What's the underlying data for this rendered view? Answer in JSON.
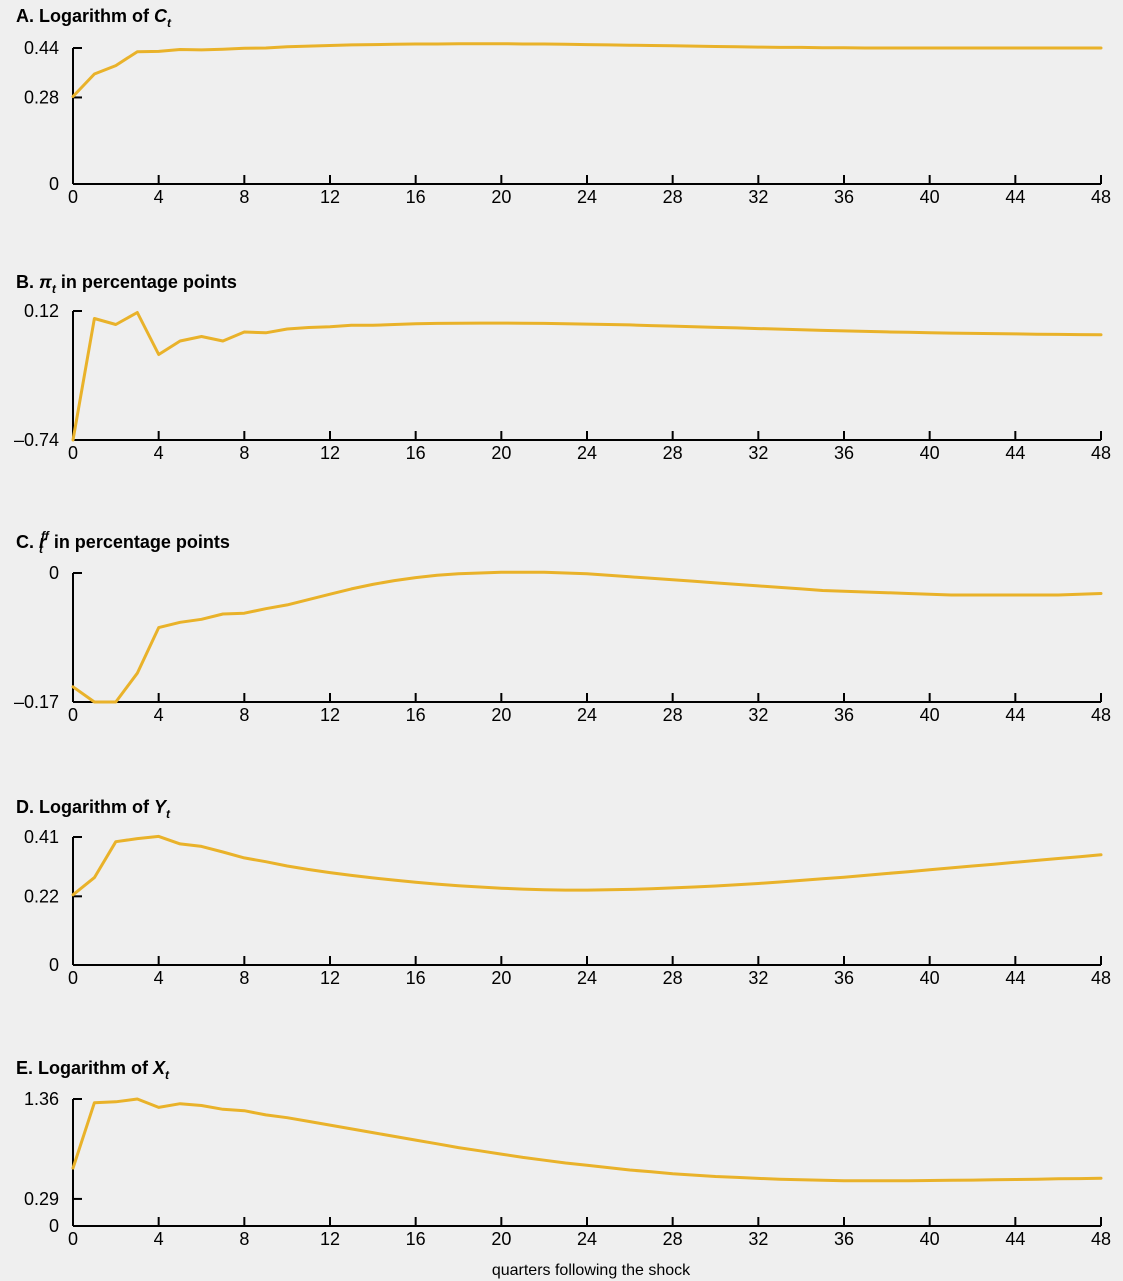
{
  "figure": {
    "xlabel": "quarters following the shock",
    "line_color": "#e9b22a",
    "background": "#efefef"
  },
  "chart_data": [
    {
      "type": "line",
      "panel": "A",
      "title_prefix": "A. Logarithm of ",
      "title_symbol": "C",
      "title_sub": "t",
      "title_suffix": "",
      "xlabel": "",
      "ylabel": "",
      "xlim": [
        0,
        48
      ],
      "ylim": [
        0,
        0.44
      ],
      "x_ticks": [
        0,
        4,
        8,
        12,
        16,
        20,
        24,
        28,
        32,
        36,
        40,
        44,
        48
      ],
      "x_tick_labels": [
        "0",
        "4",
        "8",
        "12",
        "16",
        "20",
        "24",
        "28",
        "32",
        "36",
        "40",
        "44",
        "48"
      ],
      "y_ticks": [
        0,
        0.28,
        0.44
      ],
      "y_tick_labels": [
        "0",
        "0.28",
        "0.44"
      ],
      "x": [
        0,
        1,
        2,
        3,
        4,
        5,
        6,
        7,
        8,
        9,
        10,
        11,
        12,
        13,
        14,
        15,
        16,
        17,
        18,
        19,
        20,
        21,
        22,
        23,
        24,
        25,
        26,
        27,
        28,
        29,
        30,
        31,
        32,
        33,
        34,
        35,
        36,
        37,
        38,
        39,
        40,
        41,
        42,
        43,
        44,
        45,
        46,
        47,
        48
      ],
      "y": [
        0.283,
        0.356,
        0.383,
        0.428,
        0.429,
        0.435,
        0.434,
        0.436,
        0.439,
        0.44,
        0.444,
        0.446,
        0.448,
        0.45,
        0.451,
        0.452,
        0.453,
        0.453,
        0.454,
        0.454,
        0.454,
        0.453,
        0.453,
        0.452,
        0.451,
        0.45,
        0.449,
        0.448,
        0.447,
        0.446,
        0.445,
        0.444,
        0.443,
        0.442,
        0.442,
        0.441,
        0.441,
        0.44,
        0.44,
        0.44,
        0.44,
        0.44,
        0.44,
        0.44,
        0.44,
        0.44,
        0.44,
        0.44,
        0.44
      ]
    },
    {
      "type": "line",
      "panel": "B",
      "title_prefix": "B. ",
      "title_symbol": "π",
      "title_sub": "t",
      "title_suffix": " in percentage points",
      "xlabel": "",
      "ylabel": "",
      "xlim": [
        0,
        48
      ],
      "ylim": [
        -0.74,
        0.12
      ],
      "x_ticks": [
        0,
        4,
        8,
        12,
        16,
        20,
        24,
        28,
        32,
        36,
        40,
        44,
        48
      ],
      "x_tick_labels": [
        "0",
        "4",
        "8",
        "12",
        "16",
        "20",
        "24",
        "28",
        "32",
        "36",
        "40",
        "44",
        "48"
      ],
      "y_ticks": [
        -0.74,
        0.12
      ],
      "y_tick_labels": [
        "–0.74",
        "0.12"
      ],
      "x": [
        0,
        1,
        2,
        3,
        4,
        5,
        6,
        7,
        8,
        9,
        10,
        11,
        12,
        13,
        14,
        15,
        16,
        17,
        18,
        19,
        20,
        21,
        22,
        23,
        24,
        25,
        26,
        27,
        28,
        29,
        30,
        31,
        32,
        33,
        34,
        35,
        36,
        37,
        38,
        39,
        40,
        41,
        42,
        43,
        44,
        45,
        46,
        47,
        48
      ],
      "y": [
        -0.74,
        0.07,
        0.03,
        0.11,
        -0.17,
        -0.08,
        -0.05,
        -0.08,
        -0.02,
        -0.025,
        0.0,
        0.01,
        0.015,
        0.025,
        0.025,
        0.03,
        0.035,
        0.037,
        0.038,
        0.039,
        0.039,
        0.038,
        0.037,
        0.035,
        0.033,
        0.03,
        0.027,
        0.023,
        0.019,
        0.015,
        0.011,
        0.007,
        0.003,
        -0.001,
        -0.005,
        -0.009,
        -0.013,
        -0.016,
        -0.019,
        -0.022,
        -0.025,
        -0.027,
        -0.029,
        -0.031,
        -0.033,
        -0.035,
        -0.036,
        -0.037,
        -0.038
      ]
    },
    {
      "type": "line",
      "panel": "C",
      "title_prefix": "C. ",
      "title_symbol": "r",
      "title_sub": "t",
      "title_sup": "ff",
      "title_suffix": " in percentage points",
      "xlabel": "",
      "ylabel": "",
      "xlim": [
        0,
        48
      ],
      "ylim": [
        -0.17,
        0
      ],
      "x_ticks": [
        0,
        4,
        8,
        12,
        16,
        20,
        24,
        28,
        32,
        36,
        40,
        44,
        48
      ],
      "x_tick_labels": [
        "0",
        "4",
        "8",
        "12",
        "16",
        "20",
        "24",
        "28",
        "32",
        "36",
        "40",
        "44",
        "48"
      ],
      "y_ticks": [
        -0.17,
        0
      ],
      "y_tick_labels": [
        "–0.17",
        "0"
      ],
      "x": [
        0,
        1,
        2,
        3,
        4,
        5,
        6,
        7,
        8,
        9,
        10,
        11,
        12,
        13,
        14,
        15,
        16,
        17,
        18,
        19,
        20,
        21,
        22,
        23,
        24,
        25,
        26,
        27,
        28,
        29,
        30,
        31,
        32,
        33,
        34,
        35,
        36,
        37,
        38,
        39,
        40,
        41,
        42,
        43,
        44,
        45,
        46,
        47,
        48
      ],
      "y": [
        -0.15,
        -0.17,
        -0.17,
        -0.132,
        -0.072,
        -0.065,
        -0.061,
        -0.054,
        -0.053,
        -0.047,
        -0.042,
        -0.035,
        -0.028,
        -0.021,
        -0.015,
        -0.01,
        -0.006,
        -0.003,
        -0.001,
        0.0,
        0.001,
        0.001,
        0.001,
        0.0,
        -0.001,
        -0.003,
        -0.005,
        -0.007,
        -0.009,
        -0.011,
        -0.013,
        -0.015,
        -0.017,
        -0.019,
        -0.021,
        -0.023,
        -0.024,
        -0.025,
        -0.026,
        -0.027,
        -0.028,
        -0.029,
        -0.029,
        -0.029,
        -0.029,
        -0.029,
        -0.029,
        -0.028,
        -0.027
      ]
    },
    {
      "type": "line",
      "panel": "D",
      "title_prefix": "D. Logarithm of ",
      "title_symbol": "Y",
      "title_sub": "t",
      "title_suffix": "",
      "xlabel": "",
      "ylabel": "",
      "xlim": [
        0,
        48
      ],
      "ylim": [
        0,
        0.41
      ],
      "x_ticks": [
        0,
        4,
        8,
        12,
        16,
        20,
        24,
        28,
        32,
        36,
        40,
        44,
        48
      ],
      "x_tick_labels": [
        "0",
        "4",
        "8",
        "12",
        "16",
        "20",
        "24",
        "28",
        "32",
        "36",
        "40",
        "44",
        "48"
      ],
      "y_ticks": [
        0,
        0.22,
        0.41
      ],
      "y_tick_labels": [
        "0",
        "0.22",
        "0.41"
      ],
      "x": [
        0,
        1,
        2,
        3,
        4,
        5,
        6,
        7,
        8,
        9,
        10,
        11,
        12,
        13,
        14,
        15,
        16,
        17,
        18,
        19,
        20,
        21,
        22,
        23,
        24,
        25,
        26,
        27,
        28,
        29,
        30,
        31,
        32,
        33,
        34,
        35,
        36,
        37,
        38,
        39,
        40,
        41,
        42,
        43,
        44,
        45,
        46,
        47,
        48
      ],
      "y": [
        0.225,
        0.28,
        0.395,
        0.405,
        0.412,
        0.388,
        0.38,
        0.362,
        0.343,
        0.331,
        0.317,
        0.306,
        0.296,
        0.287,
        0.279,
        0.272,
        0.265,
        0.259,
        0.254,
        0.25,
        0.246,
        0.243,
        0.241,
        0.24,
        0.24,
        0.241,
        0.242,
        0.244,
        0.247,
        0.25,
        0.253,
        0.257,
        0.261,
        0.266,
        0.271,
        0.276,
        0.281,
        0.287,
        0.293,
        0.299,
        0.305,
        0.311,
        0.317,
        0.323,
        0.329,
        0.335,
        0.341,
        0.347,
        0.353
      ]
    },
    {
      "type": "line",
      "panel": "E",
      "title_prefix": "E. Logarithm of ",
      "title_symbol": "X",
      "title_sub": "t",
      "title_suffix": "",
      "xlabel": "quarters following the shock",
      "ylabel": "",
      "xlim": [
        0,
        48
      ],
      "ylim": [
        0,
        1.36
      ],
      "x_ticks": [
        0,
        4,
        8,
        12,
        16,
        20,
        24,
        28,
        32,
        36,
        40,
        44,
        48
      ],
      "x_tick_labels": [
        "0",
        "4",
        "8",
        "12",
        "16",
        "20",
        "24",
        "28",
        "32",
        "36",
        "40",
        "44",
        "48"
      ],
      "y_ticks": [
        0,
        0.29,
        1.36
      ],
      "y_tick_labels": [
        "0",
        "0.29",
        "1.36"
      ],
      "x": [
        0,
        1,
        2,
        3,
        4,
        5,
        6,
        7,
        8,
        9,
        10,
        11,
        12,
        13,
        14,
        15,
        16,
        17,
        18,
        19,
        20,
        21,
        22,
        23,
        24,
        25,
        26,
        27,
        28,
        29,
        30,
        31,
        32,
        33,
        34,
        35,
        36,
        37,
        38,
        39,
        40,
        41,
        42,
        43,
        44,
        45,
        46,
        47,
        48
      ],
      "y": [
        0.62,
        1.32,
        1.33,
        1.36,
        1.27,
        1.31,
        1.29,
        1.25,
        1.235,
        1.19,
        1.16,
        1.12,
        1.08,
        1.04,
        1.0,
        0.96,
        0.92,
        0.88,
        0.84,
        0.805,
        0.77,
        0.735,
        0.705,
        0.675,
        0.65,
        0.625,
        0.6,
        0.58,
        0.56,
        0.545,
        0.53,
        0.52,
        0.51,
        0.5,
        0.495,
        0.49,
        0.485,
        0.485,
        0.485,
        0.485,
        0.487,
        0.489,
        0.492,
        0.495,
        0.498,
        0.501,
        0.505,
        0.508,
        0.512
      ]
    }
  ]
}
